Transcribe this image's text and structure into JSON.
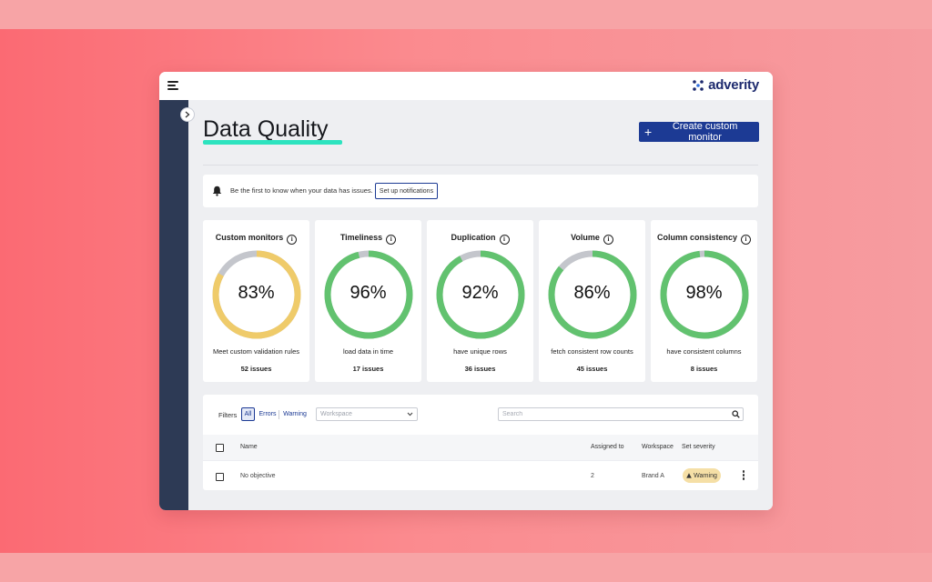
{
  "header": {
    "brand_name": "adverity"
  },
  "page": {
    "title": "Data Quality",
    "create_button_label": "Create custom monitor"
  },
  "notification": {
    "text": "Be the first to know when your data has issues.",
    "button_label": "Set up notifications"
  },
  "metrics": [
    {
      "title": "Custom monitors",
      "percent": 83,
      "percent_label": "83%",
      "description": "Meet custom validation rules",
      "issues": "52 issues",
      "color": "#efcb6a"
    },
    {
      "title": "Timeliness",
      "percent": 96,
      "percent_label": "96%",
      "description": "load data in time",
      "issues": "17 issues",
      "color": "#62c26f"
    },
    {
      "title": "Duplication",
      "percent": 92,
      "percent_label": "92%",
      "description": "have unique rows",
      "issues": "36 issues",
      "color": "#62c26f"
    },
    {
      "title": "Volume",
      "percent": 86,
      "percent_label": "86%",
      "description": "fetch consistent row counts",
      "issues": "45 issues",
      "color": "#62c26f"
    },
    {
      "title": "Column consistency",
      "percent": 98,
      "percent_label": "98%",
      "description": "have consistent columns",
      "issues": "8 issues",
      "color": "#62c26f"
    }
  ],
  "filters": {
    "label": "Filters",
    "options": [
      "All",
      "Errors",
      "Warning"
    ],
    "selected": "All",
    "workspace_placeholder": "Workspace",
    "search_placeholder": "Search"
  },
  "table": {
    "columns": {
      "name": "Name",
      "assigned_to": "Assigned to",
      "workspace": "Workspace",
      "severity": "Set severity"
    },
    "rows": [
      {
        "name": "No objective",
        "assigned_to": "2",
        "workspace": "Brand A",
        "severity": "Warning"
      }
    ]
  },
  "colors": {
    "primary": "#1c3a94",
    "accent_underline": "#2de3bf",
    "sidebar": "#2d3a55",
    "warning_badge": "#f5dfa6",
    "ring_remainder": "#c4c6cc"
  }
}
